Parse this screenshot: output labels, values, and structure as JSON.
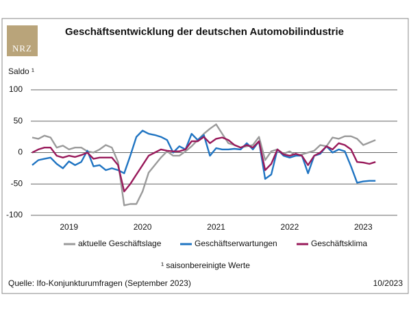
{
  "logo": "NRZ",
  "chart_data": {
    "type": "line",
    "title": "Geschäftsentwicklung der deutschen Automobilindustrie",
    "y_label": "Saldo ¹",
    "footnote": "¹ saisonbereinigte Werte",
    "source": "Quelle: Ifo-Konjunkturumfragen (September 2023)",
    "date": "10/2023",
    "categories": [
      null,
      null,
      null,
      null,
      null,
      null,
      "2019",
      null,
      null,
      null,
      null,
      null,
      null,
      null,
      null,
      null,
      null,
      null,
      "2020",
      null,
      null,
      null,
      null,
      null,
      null,
      null,
      null,
      null,
      null,
      null,
      "2021",
      null,
      null,
      null,
      null,
      null,
      null,
      null,
      null,
      null,
      null,
      null,
      "2022",
      null,
      null,
      null,
      null,
      null,
      null,
      null,
      null,
      null,
      null,
      null,
      "2023",
      null,
      null
    ],
    "ylim": [
      -100,
      100
    ],
    "yticks": [
      -100,
      -50,
      0,
      50,
      100
    ],
    "grid": true,
    "legend": "bottom",
    "series": [
      {
        "name": "aktuelle Geschäftslage",
        "color": "#9a9a9a",
        "values": [
          24,
          22,
          27,
          24,
          8,
          11,
          5,
          8,
          8,
          2,
          0,
          5,
          12,
          8,
          -15,
          -84,
          -82,
          -82,
          -62,
          -32,
          -20,
          -8,
          2,
          -5,
          -5,
          2,
          10,
          20,
          30,
          38,
          45,
          30,
          15,
          12,
          8,
          10,
          12,
          25,
          -12,
          2,
          5,
          -2,
          2,
          -5,
          -3,
          0,
          3,
          12,
          10,
          24,
          22,
          26,
          26,
          22,
          12,
          16,
          20
        ]
      },
      {
        "name": "Geschäftserwartungen",
        "color": "#1f74c2",
        "values": [
          -20,
          -12,
          -10,
          -8,
          -18,
          -25,
          -14,
          -20,
          -15,
          3,
          -22,
          -20,
          -28,
          -25,
          -28,
          -33,
          -5,
          25,
          35,
          30,
          28,
          25,
          20,
          0,
          10,
          5,
          30,
          20,
          28,
          -5,
          7,
          5,
          5,
          6,
          5,
          15,
          5,
          18,
          -42,
          -35,
          5,
          -5,
          -8,
          -5,
          -5,
          -33,
          -5,
          -2,
          10,
          0,
          5,
          2,
          -22,
          -48,
          -46,
          -45,
          -45
        ]
      },
      {
        "name": "Geschäftsklima",
        "color": "#98195a",
        "values": [
          0,
          5,
          8,
          8,
          -5,
          -8,
          -5,
          -7,
          -4,
          0,
          -10,
          -8,
          -8,
          -8,
          -20,
          -62,
          -50,
          -35,
          -20,
          -5,
          0,
          5,
          3,
          2,
          2,
          5,
          18,
          18,
          25,
          15,
          22,
          24,
          20,
          12,
          8,
          12,
          8,
          18,
          -28,
          -18,
          5,
          -3,
          -5,
          -2,
          -5,
          -20,
          -5,
          0,
          10,
          5,
          15,
          12,
          5,
          -15,
          -16,
          -18,
          -15
        ]
      }
    ]
  }
}
